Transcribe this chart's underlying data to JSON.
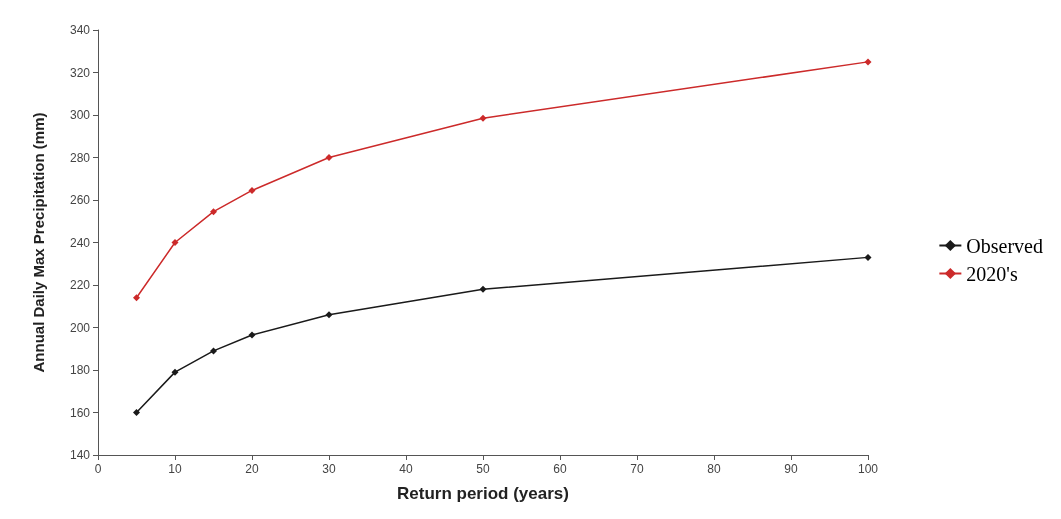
{
  "chart_data": {
    "type": "line",
    "xlabel": "Return period (years)",
    "ylabel": "Annual Daily Max Precipitation (mm)",
    "series": [
      {
        "name": "Observed",
        "color": "#1a1a1a",
        "x": [
          5,
          10,
          15,
          20,
          30,
          50,
          100
        ],
        "values": [
          160,
          179,
          189,
          196.5,
          206,
          218,
          233
        ]
      },
      {
        "name": "2020's",
        "color": "#cc2a2a",
        "x": [
          5,
          10,
          15,
          20,
          30,
          50,
          100
        ],
        "values": [
          214,
          240,
          254.5,
          264.5,
          280,
          298.5,
          325
        ]
      }
    ],
    "xlim": [
      0,
      100
    ],
    "xticks": [
      0,
      10,
      20,
      30,
      40,
      50,
      60,
      70,
      80,
      90,
      100
    ],
    "ylim": [
      140,
      340
    ],
    "yticks": [
      140,
      160,
      180,
      200,
      220,
      240,
      260,
      280,
      300,
      320,
      340
    ],
    "grid": false,
    "legend": "right",
    "marker": "diamond",
    "line_style": "solid"
  }
}
